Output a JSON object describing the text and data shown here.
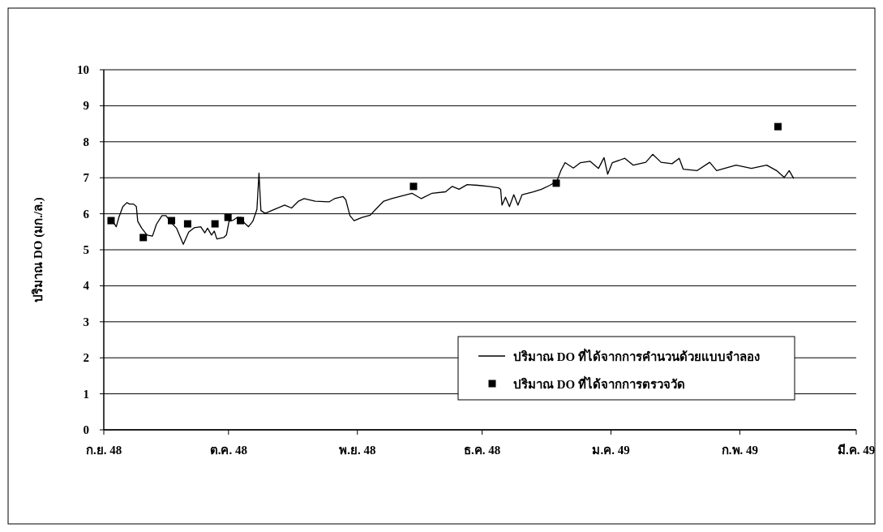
{
  "chart_data": {
    "type": "line",
    "ylabel": "ปริมาณ DO (มก./ล.)",
    "xlim": [
      "2548-09-01",
      "2549-03-01"
    ],
    "xticks": [
      {
        "value": "2548-09-01",
        "label": "ก.ย. 48"
      },
      {
        "value": "2548-10-01",
        "label": "ต.ค. 48"
      },
      {
        "value": "2548-11-01",
        "label": "พ.ย. 48"
      },
      {
        "value": "2548-12-01",
        "label": "ธ.ค. 48"
      },
      {
        "value": "2549-01-01",
        "label": "ม.ค. 49"
      },
      {
        "value": "2549-02-01",
        "label": "ก.พ. 49"
      },
      {
        "value": "2549-03-01",
        "label": "มี.ค. 49"
      }
    ],
    "ylim": [
      0,
      10
    ],
    "yticks": [
      0,
      1,
      2,
      3,
      4,
      5,
      6,
      7,
      8,
      9,
      10
    ],
    "grid": "y",
    "legend": "bottom right",
    "series": [
      {
        "name": "ปริมาณ DO ที่ได้จากการคำนวนด้วยแบบจำลอง",
        "color": "#000000",
        "marker": "none",
        "line_style": "solid",
        "x": [
          "2548-09-03T00:00",
          "2548-09-04T00:00",
          "2548-09-04T15:00",
          "2548-09-05T14:00",
          "2548-09-06T13:00",
          "2548-09-07T05:00",
          "2548-09-08T04:00",
          "2548-09-08T20:00",
          "2548-09-09T04:00",
          "2548-09-10T03:00",
          "2548-09-11T10:00",
          "2548-09-12T17:00",
          "2548-09-13T16:00",
          "2548-09-15T00:00",
          "2548-09-15T23:00",
          "2548-09-17T06:00",
          "2548-09-18T12:00",
          "2548-09-20T03:00",
          "2548-09-21T10:00",
          "2548-09-22T17:00",
          "2548-09-24T08:00",
          "2548-09-25T07:00",
          "2548-09-25T23:00",
          "2548-09-26T22:00",
          "2548-09-27T14:00",
          "2548-09-28T05:00",
          "2548-09-29T20:00",
          "2548-09-30T12:00",
          "2548-10-01T03:00",
          "2548-10-02T03:00",
          "2548-10-03T03:00",
          "2548-10-04T03:00",
          "2548-10-04T19:00",
          "2548-10-05T19:00",
          "2548-10-06T20:00",
          "2548-10-07T20:00",
          "2548-10-08T08:00",
          "2548-10-08T19:00",
          "2548-10-09T20:00",
          "2548-10-11T20:00",
          "2548-10-14T12:00",
          "2548-10-16T04:00",
          "2548-10-17T20:00",
          "2548-10-19T04:00",
          "2548-10-21T21:00",
          "2548-10-25T04:00",
          "2548-10-26T12:00",
          "2548-10-28T13:00",
          "2548-10-29T05:00",
          "2548-10-30T05:00",
          "2548-10-31T05:00",
          "2548-11-02T03:00",
          "2548-11-04T02:00",
          "2548-11-05T17:00",
          "2548-11-07T08:00",
          "2548-11-09T06:00",
          "2548-11-11T21:00",
          "2548-11-14T03:00",
          "2548-11-16T09:00",
          "2548-11-18T23:00",
          "2548-11-22T05:00",
          "2548-11-23T20:00",
          "2548-11-25T11:00",
          "2548-11-27T10:00",
          "2548-11-29T23:00",
          "2548-12-02T15:00",
          "2548-12-04T23:00",
          "2548-12-05T11:00",
          "2548-12-05T19:00",
          "2548-12-06T15:00",
          "2548-12-07T14:00",
          "2548-12-08T15:00",
          "2548-12-09T15:00",
          "2548-12-10T15:00",
          "2548-12-13T07:00",
          "2548-12-15T07:00",
          "2548-12-17T07:00",
          "2548-12-18T23:00",
          "2548-12-19T23:00",
          "2548-12-20T23:00",
          "2548-12-22T23:00",
          "2548-12-24T16:00",
          "2548-12-26T23:00",
          "2548-12-29T00:00",
          "2548-12-30T08:00",
          "2548-12-31T05:00",
          "2549-01-01T08:00",
          "2549-01-03T08:00",
          "2549-01-04T08:00",
          "2549-01-06T09:00",
          "2549-01-09T09:00",
          "2549-01-11T01:00",
          "2549-01-13T01:00",
          "2549-01-15T17:00",
          "2549-01-17T10:00",
          "2549-01-18T09:00",
          "2549-01-21T18:00",
          "2549-01-24T18:00",
          "2549-01-26T10:00",
          "2549-01-31T02:00",
          "2549-02-03T19:00",
          "2549-02-07T11:00",
          "2549-02-09T20:00",
          "2549-02-11T16:00",
          "2549-02-12T21:00",
          "2549-02-13T23:00"
        ],
        "values": [
          5.82,
          5.64,
          5.9,
          6.2,
          6.31,
          6.27,
          6.27,
          6.2,
          5.79,
          5.6,
          5.41,
          5.38,
          5.71,
          5.95,
          5.95,
          5.75,
          5.6,
          5.15,
          5.49,
          5.61,
          5.64,
          5.47,
          5.6,
          5.41,
          5.52,
          5.3,
          5.34,
          5.41,
          5.79,
          5.82,
          5.9,
          5.9,
          5.75,
          5.64,
          5.79,
          6.12,
          7.13,
          6.09,
          6.01,
          6.11,
          6.24,
          6.16,
          6.35,
          6.42,
          6.35,
          6.33,
          6.42,
          6.48,
          6.39,
          5.95,
          5.81,
          5.9,
          5.96,
          6.16,
          6.35,
          6.42,
          6.5,
          6.57,
          6.42,
          6.57,
          6.61,
          6.76,
          6.68,
          6.81,
          6.79,
          6.76,
          6.72,
          6.68,
          6.24,
          6.46,
          6.2,
          6.53,
          6.24,
          6.53,
          6.61,
          6.68,
          6.79,
          6.9,
          7.2,
          7.42,
          7.27,
          7.42,
          7.46,
          7.26,
          7.56,
          7.1,
          7.42,
          7.5,
          7.54,
          7.35,
          7.43,
          7.65,
          7.43,
          7.39,
          7.54,
          7.24,
          7.2,
          7.43,
          7.2,
          7.35,
          7.26,
          7.35,
          7.2,
          7.01,
          7.2,
          6.98
        ]
      },
      {
        "name": "ปริมาณ DO ที่ได้จากการตรวจวัด",
        "type": "scatter",
        "color": "#000000",
        "marker": "square",
        "x": [
          "2548-09-02T18:00",
          "2548-09-10T12:00",
          "2548-09-17T07:00",
          "2548-09-21T04:00",
          "2548-09-27T18:00",
          "2548-09-30T21:00",
          "2548-10-03T21:00",
          "2548-11-14T12:00",
          "2548-12-18T20:00",
          "2549-02-10T04:00"
        ],
        "values": [
          5.81,
          5.34,
          5.81,
          5.72,
          5.72,
          5.9,
          5.81,
          6.76,
          6.85,
          8.42
        ]
      }
    ]
  }
}
